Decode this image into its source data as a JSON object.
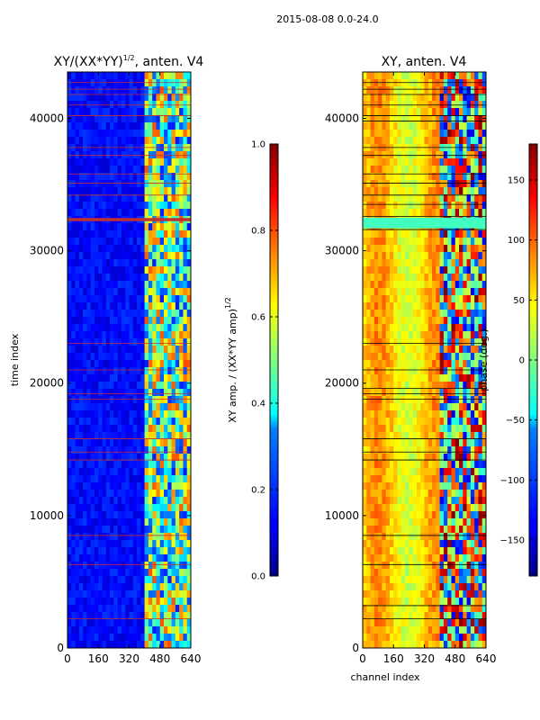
{
  "suptitle": "2015-08-08 0.0-24.0",
  "panels": [
    {
      "id": "amplitude",
      "title_main": "XY/(XX*YY)",
      "title_exp": "1/2",
      "title_tail": ", anten. V4",
      "ylabel": "time index",
      "xlabel": "",
      "x_ticks": [
        "0",
        "160",
        "320",
        "480",
        "640"
      ],
      "y_ticks": [
        "0",
        "10000",
        "20000",
        "30000",
        "40000"
      ],
      "x_range": [
        0,
        640
      ],
      "y_range": [
        0,
        43500
      ]
    },
    {
      "id": "phase",
      "title": "XY, anten. V4",
      "ylabel": "",
      "xlabel": "channel index",
      "x_ticks": [
        "0",
        "160",
        "320",
        "480",
        "640"
      ],
      "y_ticks": [
        "0",
        "10000",
        "20000",
        "30000",
        "40000"
      ],
      "x_range": [
        0,
        640
      ],
      "y_range": [
        0,
        43500
      ]
    }
  ],
  "colorbars": [
    {
      "id": "amp-colorbar",
      "label_main": "XY amp. / (XX*YY amp)",
      "label_exp": "1/2",
      "ticks": [
        "0.0",
        "0.2",
        "0.4",
        "0.6",
        "0.8",
        "1.0"
      ],
      "range": [
        0,
        1
      ]
    },
    {
      "id": "phase-colorbar",
      "label": "phase (deg.)",
      "ticks": [
        "−150",
        "−100",
        "−50",
        "0",
        "50",
        "100",
        "150"
      ],
      "range": [
        -180,
        180
      ]
    }
  ],
  "chart_data": [
    {
      "type": "heatmap",
      "title": "XY/(XX*YY)^1/2, anten. V4",
      "xlabel": "",
      "ylabel": "time index",
      "xlim": [
        0,
        640
      ],
      "ylim": [
        0,
        43500
      ],
      "colormap": "jet",
      "clim": [
        0,
        1
      ],
      "description_values": {
        "channels_0_to_400": 0.12,
        "channels_400_to_640": 0.5
      }
    },
    {
      "type": "heatmap",
      "title": "XY, anten. V4",
      "xlabel": "channel index",
      "ylabel": "",
      "xlim": [
        0,
        640
      ],
      "ylim": [
        0,
        43500
      ],
      "colormap": "jet",
      "clim": [
        -180,
        180
      ],
      "description_values": {
        "channels_0_to_400_phase_deg": 75,
        "channels_400_to_640_phase_deg": -60
      }
    }
  ],
  "colors": {
    "jet_dark_blue": "#00008f",
    "jet_blue": "#0000ff",
    "jet_cyan": "#00ffff",
    "jet_yellow": "#ffff00",
    "jet_red": "#ff0000",
    "jet_dark_red": "#800000",
    "flag_line_red": "#c03030",
    "flag_line_black": "#000000"
  }
}
